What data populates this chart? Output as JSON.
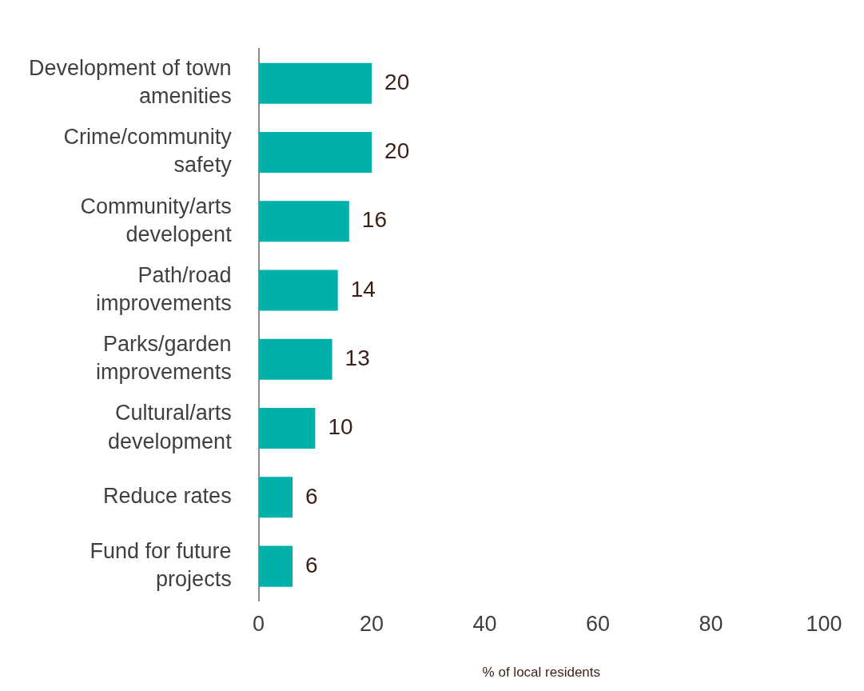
{
  "chart_data": {
    "type": "bar",
    "orientation": "horizontal",
    "xlabel": "% of local residents",
    "categories": [
      "Development of town amenities",
      "Crime/community safety",
      "Community/arts developent",
      "Path/road improvements",
      "Parks/garden improvements",
      "Cultural/arts development",
      "Reduce rates",
      "Fund for future projects"
    ],
    "values": [
      20,
      20,
      16,
      14,
      13,
      10,
      6,
      6
    ],
    "color": "#00b0a9",
    "xlim": [
      0,
      100
    ],
    "xticks": [
      0,
      20,
      40,
      60,
      80,
      100
    ],
    "grid": false,
    "data_labels": true,
    "legend": false
  }
}
